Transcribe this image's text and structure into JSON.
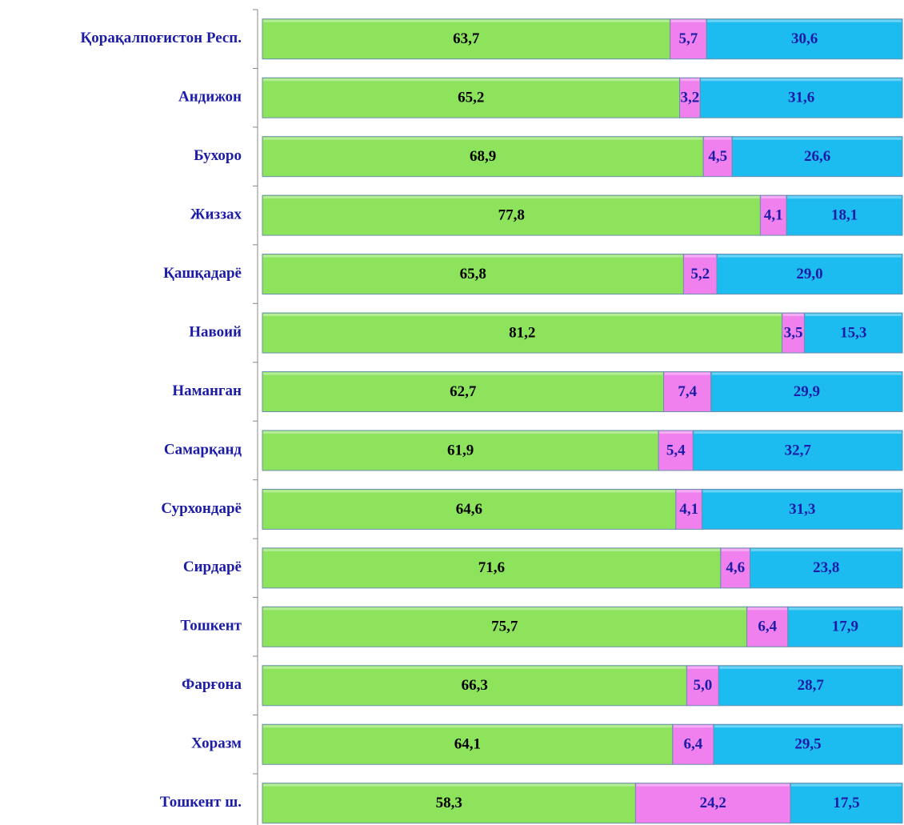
{
  "chart_data": {
    "type": "stacked-bar-horizontal",
    "categories": [
      "Қорақалпоғистон Респ.",
      "Андижон",
      "Бухоро",
      "Жиззах",
      "Қашқадарё",
      "Навоий",
      "Наманган",
      "Самарқанд",
      "Сурхондарё",
      "Сирдарё",
      "Тошкент",
      "Фарғона",
      "Хоразм",
      "Тошкент ш."
    ],
    "xlim": [
      0,
      100
    ],
    "series": [
      {
        "color": "#8de45c",
        "label_color": "#000000",
        "values": [
          63.7,
          65.2,
          68.9,
          77.8,
          65.8,
          81.2,
          62.7,
          61.9,
          64.6,
          71.6,
          75.7,
          66.3,
          64.1,
          58.3
        ],
        "value_labels": [
          "63,7",
          "65,2",
          "68,9",
          "77,8",
          "65,8",
          "81,2",
          "62,7",
          "61,9",
          "64,6",
          "71,6",
          "75,7",
          "66,3",
          "64,1",
          "58,3"
        ]
      },
      {
        "color": "#ef80ee",
        "label_color": "#1c1ca6",
        "values": [
          5.7,
          3.2,
          4.5,
          4.1,
          5.2,
          3.5,
          7.4,
          5.4,
          4.1,
          4.6,
          6.4,
          5.0,
          6.4,
          24.2
        ],
        "value_labels": [
          "5,7",
          "3,2",
          "4,5",
          "4,1",
          "5,2",
          "3,5",
          "7,4",
          "5,4",
          "4,1",
          "4,6",
          "6,4",
          "5,0",
          "6,4",
          "24,2"
        ]
      },
      {
        "color": "#1dbcf0",
        "label_color": "#1c1ca6",
        "values": [
          30.6,
          31.6,
          26.6,
          18.1,
          29.0,
          15.3,
          29.9,
          32.7,
          31.3,
          23.8,
          17.9,
          28.7,
          29.5,
          17.5
        ],
        "value_labels": [
          "30,6",
          "31,6",
          "26,6",
          "18,1",
          "29,0",
          "15,3",
          "29,9",
          "32,7",
          "31,3",
          "23,8",
          "17,9",
          "28,7",
          "29,5",
          "17,5"
        ]
      }
    ]
  }
}
